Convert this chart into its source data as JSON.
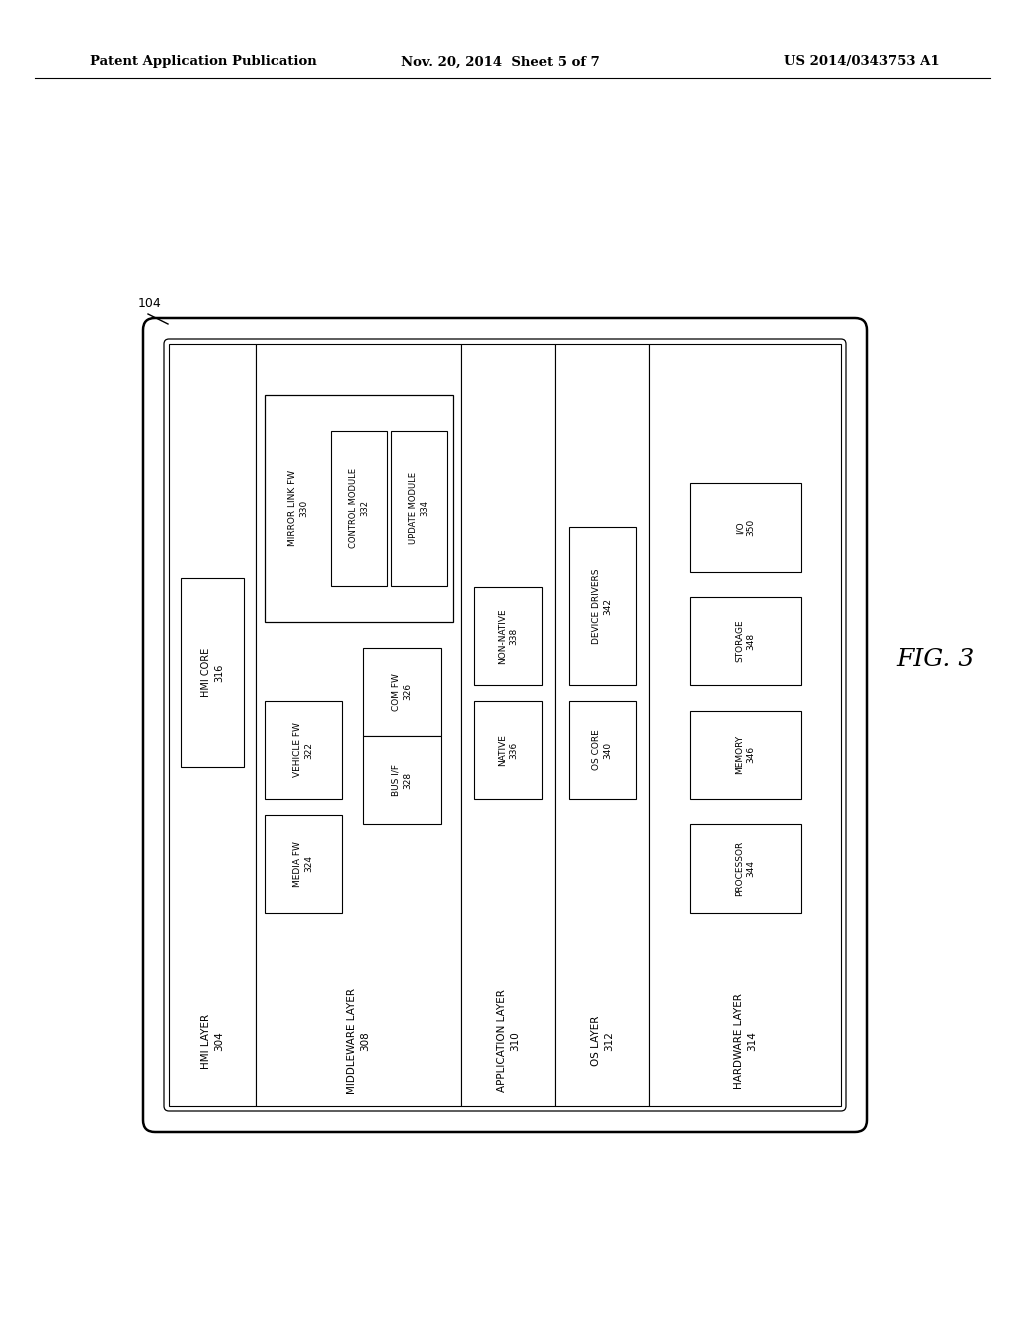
{
  "title_left": "Patent Application Publication",
  "title_mid": "Nov. 20, 2014  Sheet 5 of 7",
  "title_right": "US 2014/0343753 A1",
  "fig_label": "FIG. 3",
  "ref_104": "104",
  "background_color": "#ffffff",
  "line_color": "#000000"
}
